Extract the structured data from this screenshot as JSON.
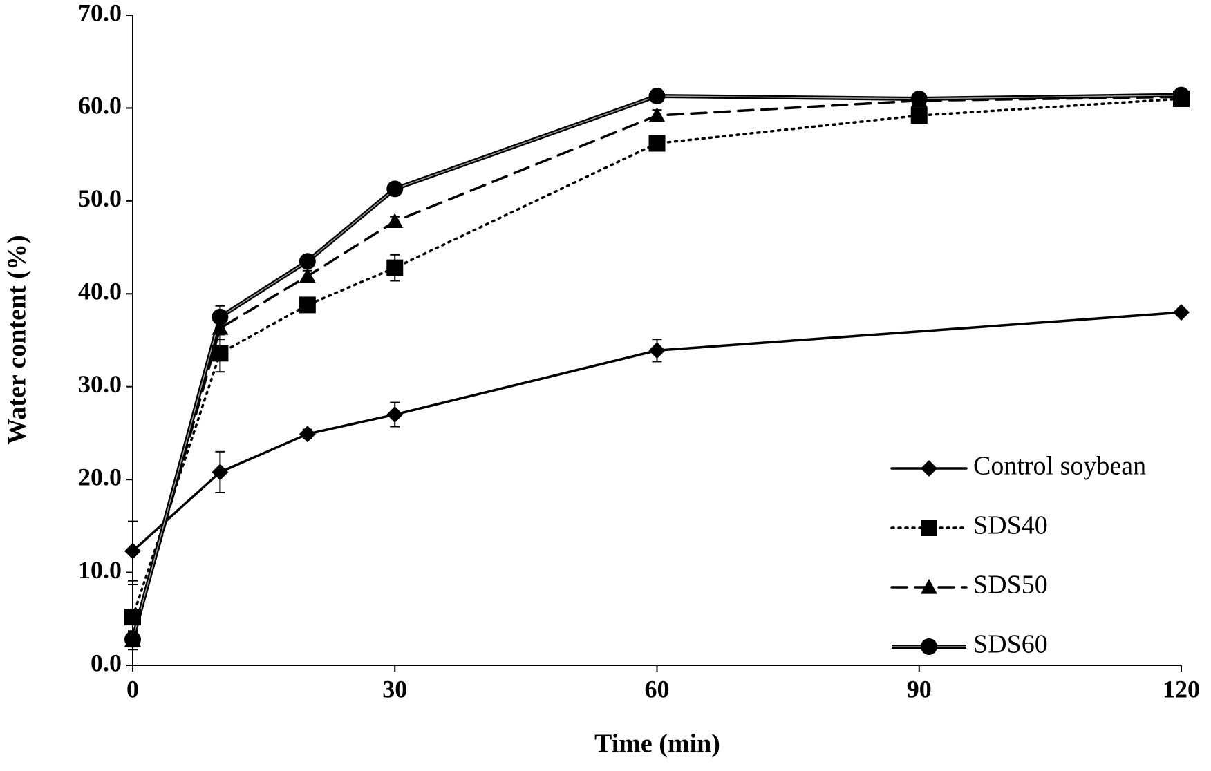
{
  "chart_data": {
    "type": "line",
    "x_label": "Time (min)",
    "y_label": "Water content (%)",
    "xlim": [
      0,
      120
    ],
    "xticks": [
      0,
      30,
      60,
      90,
      120
    ],
    "ylim": [
      0,
      70
    ],
    "yticks": [
      {
        "value": 0,
        "label": "0.0"
      },
      {
        "value": 10,
        "label": "10.0"
      },
      {
        "value": 20,
        "label": "20.0"
      },
      {
        "value": 30,
        "label": "30.0"
      },
      {
        "value": 40,
        "label": "40.0"
      },
      {
        "value": 50,
        "label": "50.0"
      },
      {
        "value": 60,
        "label": "60.0"
      },
      {
        "value": 70,
        "label": "70.0"
      }
    ],
    "legend": "lower right",
    "series": [
      {
        "name": "Control soybean",
        "color": "#000000",
        "line_style": "solid",
        "marker": "diamond",
        "x": [
          0,
          10,
          20,
          30,
          60,
          120
        ],
        "values": [
          12.3,
          20.8,
          24.9,
          27.0,
          33.9,
          38.0
        ],
        "errors": [
          3.2,
          2.2,
          0.5,
          1.3,
          1.2,
          0.3
        ]
      },
      {
        "name": "SDS40",
        "color": "#000000",
        "line_style": "dotted",
        "marker": "square",
        "x": [
          0,
          10,
          20,
          30,
          60,
          90,
          120
        ],
        "values": [
          5.2,
          33.6,
          38.8,
          42.8,
          56.2,
          59.2,
          61.0
        ],
        "errors": [
          3.5,
          2.0,
          0.6,
          1.4,
          0.8,
          0.5,
          0.3
        ]
      },
      {
        "name": "SDS50",
        "color": "#000000",
        "line_style": "dashed",
        "marker": "triangle",
        "x": [
          0,
          10,
          20,
          30,
          60,
          90,
          120
        ],
        "values": [
          2.7,
          36.3,
          41.9,
          47.8,
          59.2,
          60.8,
          61.2
        ],
        "errors": [
          1.0,
          1.2,
          0.6,
          0.5,
          0.6,
          0.3,
          0.3
        ]
      },
      {
        "name": "SDS60",
        "color": "#000000",
        "line_style": "double",
        "marker": "circle",
        "x": [
          0,
          10,
          20,
          30,
          60,
          90,
          120
        ],
        "values": [
          2.8,
          37.5,
          43.5,
          51.3,
          61.3,
          61.0,
          61.4
        ],
        "errors": [
          0.8,
          1.2,
          0.5,
          0.5,
          0.7,
          0.3,
          0.3
        ]
      }
    ]
  }
}
